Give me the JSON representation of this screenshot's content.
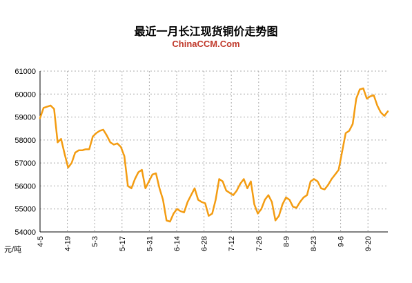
{
  "header": {
    "title": "最近一月长江现货铜价走势图",
    "brand": "ChinaCCM.Com"
  },
  "chart_data": {
    "type": "line",
    "title": "最近一月长江现货铜价走势图",
    "subtitle": "ChinaCCM.Com",
    "ylabel": "元/吨",
    "ylim": [
      54000,
      61000
    ],
    "yticks": [
      "61000",
      "60000",
      "59000",
      "58000",
      "57000",
      "56000",
      "55000",
      "54000"
    ],
    "xticks": [
      "4-5",
      "4-19",
      "5-3",
      "5-17",
      "5-31",
      "6-14",
      "6-28",
      "7-12",
      "7-26",
      "8-9",
      "8-23",
      "9-6",
      "9-20"
    ],
    "grid": true,
    "colors": {
      "line": "#f39c12"
    },
    "series": [
      {
        "values": [
          58950,
          59400,
          59450,
          59500,
          59350,
          57900,
          58050,
          57400,
          56800,
          57000,
          57450,
          57550,
          57550,
          57600,
          57600,
          58150,
          58300,
          58400,
          58450,
          58200,
          57900,
          57800,
          57850,
          57700,
          57300,
          56000,
          55900,
          56300,
          56600,
          56700,
          55900,
          56200,
          56500,
          56550,
          55900,
          55400,
          54500,
          54450,
          54800,
          55000,
          54900,
          54850,
          55300,
          55600,
          55900,
          55400,
          55300,
          55250,
          54700,
          54800,
          55400,
          56300,
          56200,
          55800,
          55700,
          55600,
          55800,
          56100,
          56300,
          55900,
          56200,
          55200,
          54800,
          55000,
          55400,
          55600,
          55300,
          54500,
          54700,
          55200,
          55500,
          55400,
          55100,
          55050,
          55300,
          55500,
          55600,
          56200,
          56300,
          56200,
          55900,
          55850,
          56050,
          56300,
          56500,
          56700,
          57500,
          58300,
          58400,
          58700,
          59800,
          60200,
          60250,
          59800,
          59900,
          59950,
          59500,
          59200,
          59050,
          59250
        ]
      }
    ]
  }
}
